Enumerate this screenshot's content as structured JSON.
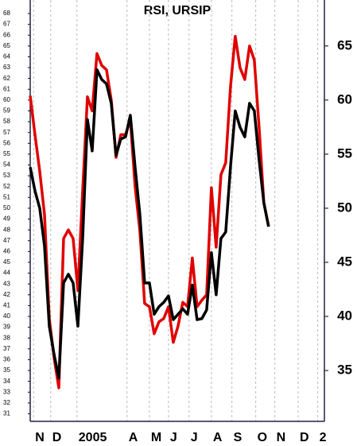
{
  "chart_data": {
    "type": "line",
    "title": "RSI, URSIP",
    "x": [
      0,
      1,
      2,
      3,
      4,
      5,
      6,
      7,
      8,
      9,
      10,
      11,
      12,
      13,
      14,
      15,
      16,
      17,
      18,
      19,
      20,
      21,
      22,
      23,
      24,
      25,
      26,
      27,
      28,
      29,
      30,
      31,
      32,
      33,
      34,
      35,
      36,
      37,
      38,
      39,
      40,
      41,
      42,
      43,
      44,
      45,
      46,
      47,
      48,
      49,
      50
    ],
    "series": [
      {
        "color": "#e00000",
        "values": [
          60.4,
          56.8,
          53.4,
          49.4,
          39.8,
          36.2,
          33.4,
          47.2,
          48,
          47.2,
          42.4,
          51.6,
          60.3,
          59,
          64.3,
          63.2,
          62.8,
          60,
          54.7,
          56.8,
          56.8,
          58.2,
          52,
          47.9,
          41.2,
          40.9,
          38.4,
          39.5,
          39.8,
          40.9,
          37.6,
          39.1,
          41.3,
          40.9,
          45.4,
          40.9,
          41.5,
          42,
          51.9,
          46.4,
          53.1,
          54.2,
          61.2,
          65.9,
          63,
          61.9,
          65,
          63.7,
          57.5,
          50.5,
          48.3
        ]
      },
      {
        "color": "#000000",
        "values": [
          53.8,
          51.6,
          50,
          46.5,
          39.1,
          36.5,
          34.3,
          43.1,
          43.9,
          43.1,
          39.1,
          47.2,
          58.2,
          55.3,
          62.8,
          61.9,
          61.5,
          59.7,
          54.9,
          56.4,
          56.6,
          58.6,
          53.8,
          49.4,
          43.1,
          43.1,
          40.2,
          40.9,
          41.3,
          41.9,
          39.7,
          40.2,
          40.7,
          40.2,
          42.9,
          39.7,
          39.8,
          40.6,
          45.9,
          42,
          47.2,
          47.8,
          53.8,
          59,
          57.5,
          56.6,
          59.7,
          59,
          54.5,
          50.5,
          48.3
        ]
      }
    ],
    "xlim": [
      0,
      61.7
    ],
    "xticks": [
      {
        "value": 0.7,
        "label": "N"
      },
      {
        "value": 4.3,
        "label": "D"
      },
      {
        "value": 9.8,
        "label": "2005"
      },
      {
        "value": 20.3,
        "label": "A"
      },
      {
        "value": 25,
        "label": "M"
      },
      {
        "value": 29,
        "label": "J"
      },
      {
        "value": 33.3,
        "label": "J"
      },
      {
        "value": 38,
        "label": "A"
      },
      {
        "value": 42.3,
        "label": "S"
      },
      {
        "value": 47.3,
        "label": "O"
      },
      {
        "value": 51.3,
        "label": "N"
      },
      {
        "value": 56.2,
        "label": "D"
      },
      {
        "value": 60.3,
        "label": "2"
      }
    ],
    "ylim": [
      30.3,
      69.25
    ],
    "yticks": [
      31,
      32,
      33,
      34,
      35,
      36,
      37,
      38,
      39,
      40,
      41,
      42,
      43,
      44,
      45,
      46,
      47,
      48,
      49,
      50,
      51,
      52,
      53,
      54,
      55,
      56,
      57,
      58,
      59,
      60,
      61,
      62,
      63,
      64,
      65,
      66,
      67,
      68
    ],
    "y2lim": [
      30.3,
      69.25
    ],
    "y2ticks": [
      35,
      40,
      45,
      50,
      55,
      60,
      65
    ],
    "grid": true
  }
}
